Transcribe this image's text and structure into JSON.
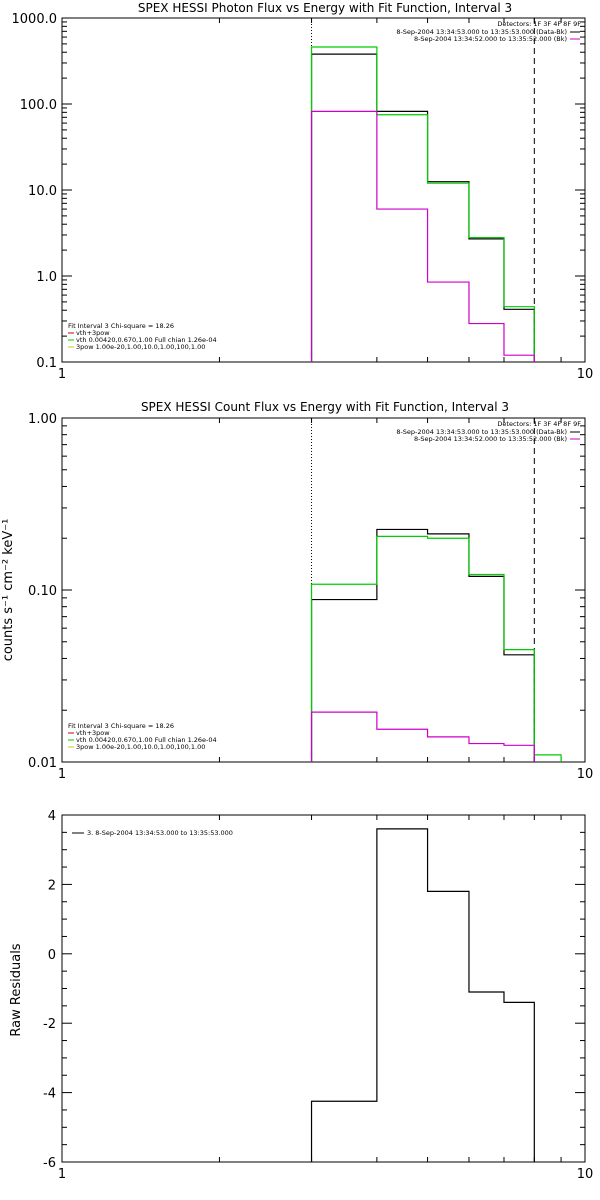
{
  "chart_data": [
    {
      "type": "line",
      "title": "SPEX HESSI Photon Flux vs Energy with Fit Function, Interval 3",
      "xscale": "log",
      "yscale": "log",
      "xlim": [
        1,
        10
      ],
      "ylim": [
        0.1,
        1000
      ],
      "xticklabels": [
        "1",
        "10"
      ],
      "yticklabels": [
        "0.1",
        "1.0",
        "10.0",
        "100.0",
        "1000.0"
      ],
      "ylabel": "",
      "detectors_label": "Detectors: 1F 3F 4F 8F 9F",
      "legend_top": [
        {
          "text": "8-Sep-2004 13:34:53.000 to 13:35:53.000 (Data-Bk)",
          "color": "#000000"
        },
        {
          "text": "8-Sep-2004 13:34:52.000 to 13:35:52.000 (Bk)",
          "color": "#cc00cc"
        }
      ],
      "fit_legend": {
        "header": "Fit Interval 3   Chi-square = 18.26",
        "entries": [
          {
            "text": "vth+3pow",
            "color": "#cc0000"
          },
          {
            "text": "vth 0.00420,0.670,1.00  Full chian 1.26e-04",
            "color": "#00cc00"
          },
          {
            "text": "3pow 1.00e-20,1.00,10.0,1.00,100,1.00",
            "color": "#cccc00"
          }
        ]
      },
      "vlines": [
        {
          "x": 3.0,
          "style": "dotted"
        },
        {
          "x": 8.0,
          "style": "dashed"
        }
      ],
      "series": [
        {
          "color": "#000000",
          "edges": [
            3,
            4,
            5,
            6,
            7,
            8
          ],
          "values": [
            380,
            82,
            12.5,
            2.7,
            0.41
          ]
        },
        {
          "color": "#00cc00",
          "edges": [
            3,
            4,
            5,
            6,
            7,
            8
          ],
          "values": [
            460,
            75,
            12.0,
            2.8,
            0.44
          ]
        },
        {
          "color": "#cc00cc",
          "edges": [
            3,
            4,
            5,
            6,
            7,
            8
          ],
          "values": [
            82,
            6.0,
            0.85,
            0.28,
            0.12
          ]
        }
      ]
    },
    {
      "type": "line",
      "title": "SPEX HESSI Count Flux vs Energy with Fit Function, Interval 3",
      "xscale": "log",
      "yscale": "log",
      "xlim": [
        1,
        10
      ],
      "ylim": [
        0.01,
        1.0
      ],
      "xticklabels": [
        "1",
        "10"
      ],
      "yticklabels": [
        "0.01",
        "0.10",
        "1.00"
      ],
      "ylabel": "counts s⁻¹ cm⁻² keV⁻¹",
      "detectors_label": "Detectors: 1F 3F 4F 8F 9F",
      "legend_top": [
        {
          "text": "8-Sep-2004 13:34:53.000 to 13:35:53.000 (Data-Bk)",
          "color": "#000000"
        },
        {
          "text": "8-Sep-2004 13:34:52.000 to 13:35:52.000 (Bk)",
          "color": "#cc00cc"
        }
      ],
      "fit_legend": {
        "header": "Fit Interval 3   Chi-square = 18.26",
        "entries": [
          {
            "text": "vth+3pow",
            "color": "#cc0000"
          },
          {
            "text": "vth 0.00420,0.670,1.00  Full chian 1.26e-04",
            "color": "#00cc00"
          },
          {
            "text": "3pow 1.00e-20,1.00,10.0,1.00,100,1.00",
            "color": "#cccc00"
          }
        ]
      },
      "vlines": [
        {
          "x": 3.0,
          "style": "dotted"
        },
        {
          "x": 8.0,
          "style": "dashed"
        }
      ],
      "series": [
        {
          "color": "#000000",
          "edges": [
            3,
            4,
            5,
            6,
            7,
            8
          ],
          "values": [
            0.088,
            0.225,
            0.212,
            0.12,
            0.042
          ]
        },
        {
          "color": "#00cc00",
          "edges": [
            3,
            4,
            5,
            6,
            7,
            8,
            9
          ],
          "values": [
            0.108,
            0.205,
            0.2,
            0.123,
            0.045,
            0.011
          ]
        },
        {
          "color": "#cc00cc",
          "edges": [
            3,
            4,
            5,
            6,
            7,
            8
          ],
          "values": [
            0.0195,
            0.0155,
            0.014,
            0.0128,
            0.0125
          ]
        }
      ]
    },
    {
      "type": "line",
      "title": "",
      "xscale": "log",
      "yscale": "linear",
      "xlim": [
        1,
        10
      ],
      "ylim": [
        -6,
        4
      ],
      "xticklabels": [
        "1",
        "10"
      ],
      "yticks": [
        -6,
        -4,
        -2,
        0,
        2,
        4
      ],
      "ylabel": "Raw Residuals",
      "legend": [
        {
          "text": "3.  8-Sep-2004 13:34:53.000 to 13:35:53.000",
          "color": "#000000"
        }
      ],
      "series": [
        {
          "color": "#000000",
          "edges": [
            3,
            4,
            5,
            6,
            7,
            8
          ],
          "values": [
            -4.25,
            3.6,
            1.8,
            -1.1,
            -1.4
          ],
          "drop_to": -6
        }
      ]
    }
  ]
}
